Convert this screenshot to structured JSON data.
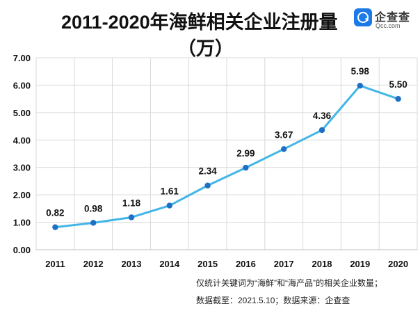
{
  "title": {
    "line1": "2011-2020年海鲜相关企业注册量",
    "line2": "（万）"
  },
  "logo": {
    "name": "企查查",
    "url": "Qcc.com",
    "brand_color": "#1c7ae8"
  },
  "footnote": {
    "line1": "仅统计关键词为“海鲜”和“海产品”的相关企业数量；",
    "line2": "数据截至：2021.5.10；数据来源：企查查"
  },
  "chart_data": {
    "type": "line",
    "categories": [
      "2011",
      "2012",
      "2013",
      "2014",
      "2015",
      "2016",
      "2017",
      "2018",
      "2019",
      "2020"
    ],
    "values": [
      0.82,
      0.98,
      1.18,
      1.61,
      2.34,
      2.99,
      3.67,
      4.36,
      5.98,
      5.5
    ],
    "data_labels": [
      "0.82",
      "0.98",
      "1.18",
      "1.61",
      "2.34",
      "2.99",
      "3.67",
      "4.36",
      "5.98",
      "5.50"
    ],
    "yticks": [
      "0.00",
      "1.00",
      "2.00",
      "3.00",
      "4.00",
      "5.00",
      "6.00",
      "7.00"
    ],
    "ylim": [
      0,
      7
    ],
    "grid": true,
    "line_color": "#41b6e6",
    "marker_color": "#1f6fc5"
  }
}
